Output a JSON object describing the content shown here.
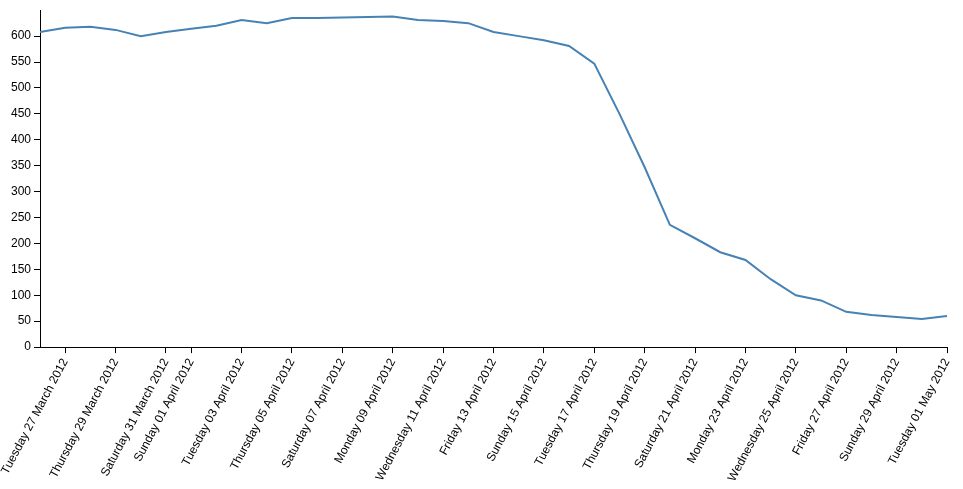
{
  "chart_data": {
    "type": "line",
    "categories": [
      null,
      "Tuesday 27 March 2012",
      null,
      "Thursday 29 March 2012",
      null,
      "Saturday 31 March 2012",
      "Sunday 01 April 2012",
      null,
      "Tuesday 03 April 2012",
      null,
      "Thursday 05 April 2012",
      null,
      "Saturday 07 April 2012",
      null,
      "Monday 09 April 2012",
      null,
      "Wednesday 11 April 2012",
      null,
      "Friday 13 April 2012",
      null,
      "Sunday 15 April 2012",
      null,
      "Tuesday 17 April 2012",
      null,
      "Thursday 19 April 2012",
      null,
      "Saturday 21 April 2012",
      null,
      "Monday 23 April 2012",
      null,
      "Wednesday 25 April 2012",
      null,
      "Friday 27 April 2012",
      null,
      "Sunday 29 April 2012",
      null,
      "Tuesday 01 May 2012"
    ],
    "values": [
      608,
      616,
      618,
      612,
      600,
      608,
      614,
      620,
      631,
      625,
      635,
      635,
      636,
      637,
      638,
      631,
      629,
      625,
      608,
      600,
      592,
      581,
      547,
      450,
      347,
      236,
      210,
      183,
      168,
      131,
      100,
      90,
      68,
      62,
      58,
      54,
      60
    ],
    "color": "#4682b4",
    "ylim": [
      0,
      650
    ],
    "yticks": [
      0,
      50,
      100,
      150,
      200,
      250,
      300,
      350,
      400,
      450,
      500,
      550,
      600
    ],
    "grid": false
  }
}
